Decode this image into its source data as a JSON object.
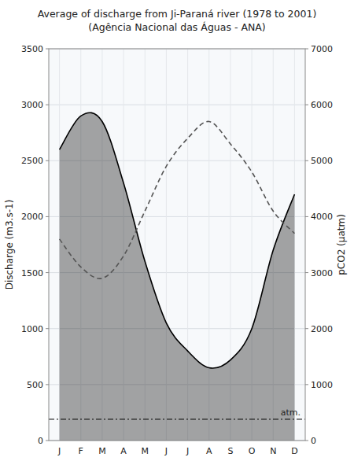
{
  "chart_data": {
    "type": "line",
    "title": "Average of discharge from Ji-Paraná river (1978 to 2001)\n(Agência Nacional das Águas - ANA)",
    "categories": [
      "J",
      "F",
      "M",
      "A",
      "M",
      "J",
      "J",
      "A",
      "S",
      "O",
      "N",
      "D"
    ],
    "series": [
      {
        "name": "Discharge",
        "type": "area",
        "color": "#000000",
        "values": [
          2600,
          2900,
          2850,
          2300,
          1600,
          1050,
          800,
          650,
          720,
          1000,
          1700,
          2200
        ]
      },
      {
        "name": "pCO2",
        "type": "line",
        "axis": "y2",
        "color": "#555555",
        "line_style": "dashed",
        "values": [
          3600,
          3100,
          2900,
          3300,
          4100,
          4900,
          5400,
          5700,
          5300,
          4800,
          4100,
          3700
        ]
      }
    ],
    "y_label": "Discharge (m3.s-1)",
    "y2_label": "pCO2 (µatm)",
    "ylim": [
      0,
      3500
    ],
    "yticks": [
      0,
      500,
      1000,
      1500,
      2000,
      2500,
      3000,
      3500
    ],
    "y2lim": [
      0,
      7000
    ],
    "y2ticks": [
      0,
      1000,
      2000,
      3000,
      4000,
      5000,
      6000,
      7000
    ],
    "annotations": [
      {
        "text": "atm.",
        "y": 380,
        "axis": "y2",
        "line_style": "dashdot",
        "color": "#000000"
      }
    ],
    "grid": true
  }
}
